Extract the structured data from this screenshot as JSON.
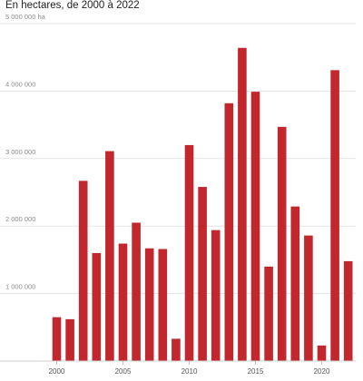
{
  "chart_data": {
    "type": "bar",
    "subtitle": "En hectares, de 2000 à 2022",
    "unit": "ha",
    "x": [
      2000,
      2001,
      2002,
      2003,
      2004,
      2005,
      2006,
      2007,
      2008,
      2009,
      2010,
      2011,
      2012,
      2013,
      2014,
      2015,
      2016,
      2017,
      2018,
      2019,
      2020,
      2021,
      2022
    ],
    "values": [
      650000,
      620000,
      2670000,
      1600000,
      3110000,
      1740000,
      2050000,
      1670000,
      1660000,
      330000,
      3200000,
      2580000,
      1940000,
      3820000,
      4640000,
      3990000,
      1400000,
      3470000,
      2290000,
      1860000,
      230000,
      4310000,
      1480000
    ],
    "xticks": [
      2000,
      2005,
      2010,
      2015,
      2020
    ],
    "xtick_labels": [
      "2000",
      "2005",
      "2010",
      "2015",
      "2020"
    ],
    "yticks": [
      1000000,
      2000000,
      3000000,
      4000000,
      5000000
    ],
    "ytick_labels": [
      "1 000 000",
      "2 000 000",
      "3 000 000",
      "4 000 000",
      "5 000 000 ha"
    ],
    "ylim": [
      0,
      5000000
    ],
    "grid": true,
    "bar_color": "#c1272d",
    "xlabel": "",
    "ylabel": ""
  }
}
